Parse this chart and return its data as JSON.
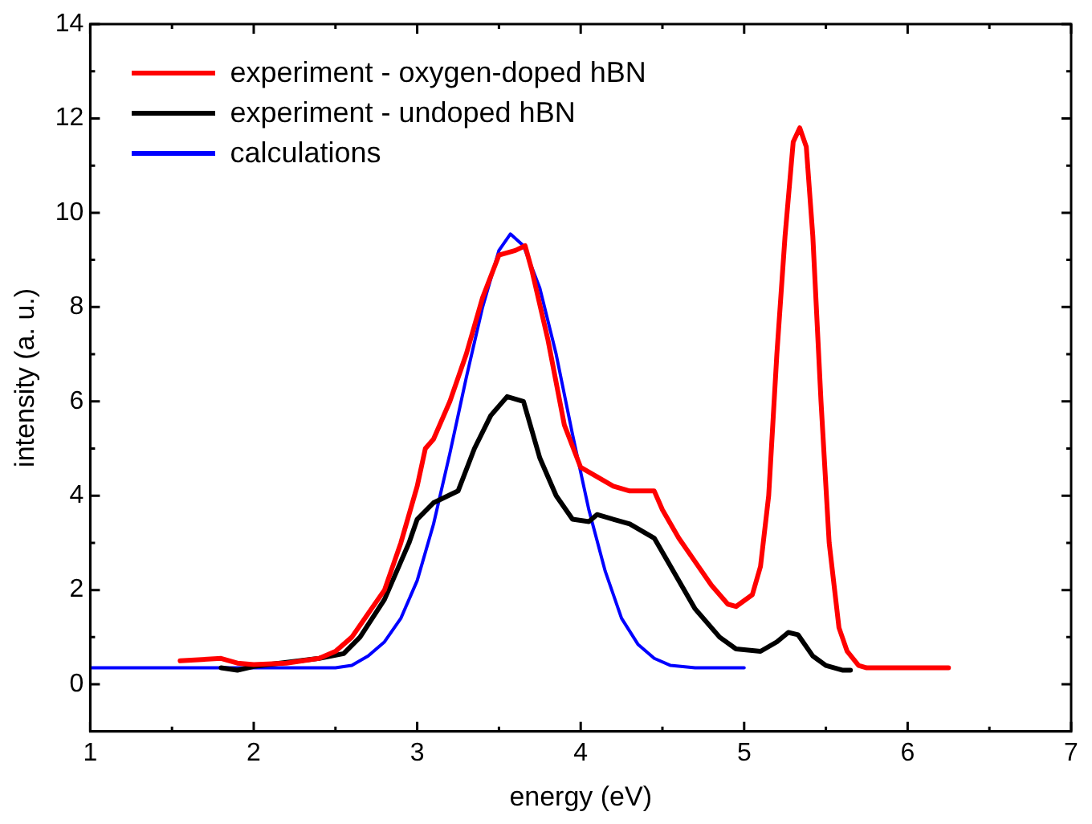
{
  "chart_data": {
    "type": "line",
    "xlabel": "energy (eV)",
    "ylabel": "intensity (a. u.)",
    "xlim": [
      1,
      7
    ],
    "xticks": [
      1,
      2,
      3,
      4,
      5,
      6,
      7
    ],
    "ylim": [
      -1,
      14
    ],
    "yticks": [
      0,
      2,
      4,
      6,
      8,
      10,
      12,
      14
    ],
    "grid": false,
    "legend": "top left",
    "marker": "none",
    "line_style": "solid",
    "series": [
      {
        "name": "experiment - oxygen-doped hBN",
        "color": "#ff0000",
        "x": [
          1.55,
          1.8,
          1.9,
          2.0,
          2.2,
          2.4,
          2.5,
          2.6,
          2.7,
          2.8,
          2.9,
          3.0,
          3.05,
          3.1,
          3.2,
          3.3,
          3.4,
          3.5,
          3.6,
          3.66,
          3.7,
          3.8,
          3.9,
          4.0,
          4.1,
          4.2,
          4.3,
          4.45,
          4.5,
          4.6,
          4.7,
          4.8,
          4.9,
          4.95,
          5.05,
          5.1,
          5.15,
          5.2,
          5.25,
          5.3,
          5.34,
          5.38,
          5.42,
          5.47,
          5.52,
          5.58,
          5.63,
          5.7,
          5.75,
          6.25
        ],
        "values": [
          0.5,
          0.55,
          0.45,
          0.42,
          0.45,
          0.55,
          0.7,
          1.0,
          1.5,
          2.0,
          3.0,
          4.2,
          5.0,
          5.2,
          6.0,
          7.0,
          8.2,
          9.1,
          9.2,
          9.3,
          8.8,
          7.3,
          5.5,
          4.6,
          4.4,
          4.2,
          4.1,
          4.1,
          3.7,
          3.1,
          2.6,
          2.1,
          1.7,
          1.65,
          1.9,
          2.5,
          4.0,
          7.0,
          9.5,
          11.5,
          11.8,
          11.4,
          9.5,
          6.0,
          3.0,
          1.2,
          0.7,
          0.4,
          0.35,
          0.35
        ]
      },
      {
        "name": "experiment - undoped hBN",
        "color": "#000000",
        "x": [
          1.8,
          1.9,
          2.0,
          2.4,
          2.55,
          2.65,
          2.8,
          2.9,
          2.95,
          3.0,
          3.1,
          3.25,
          3.35,
          3.45,
          3.5,
          3.55,
          3.65,
          3.75,
          3.85,
          3.95,
          4.05,
          4.1,
          4.3,
          4.45,
          4.55,
          4.7,
          4.85,
          4.95,
          5.1,
          5.2,
          5.27,
          5.33,
          5.42,
          5.5,
          5.6,
          5.65
        ],
        "values": [
          0.35,
          0.3,
          0.38,
          0.55,
          0.65,
          1.0,
          1.8,
          2.6,
          3.0,
          3.5,
          3.85,
          4.1,
          5.0,
          5.7,
          5.9,
          6.1,
          6.0,
          4.8,
          4.0,
          3.5,
          3.45,
          3.6,
          3.4,
          3.1,
          2.5,
          1.6,
          1.0,
          0.75,
          0.7,
          0.9,
          1.1,
          1.05,
          0.6,
          0.4,
          0.3,
          0.3
        ]
      },
      {
        "name": "calculations",
        "color": "#0000ff",
        "x": [
          1.0,
          2.5,
          2.6,
          2.7,
          2.8,
          2.9,
          3.0,
          3.1,
          3.2,
          3.3,
          3.4,
          3.5,
          3.57,
          3.65,
          3.75,
          3.85,
          3.95,
          4.05,
          4.15,
          4.25,
          4.35,
          4.45,
          4.55,
          4.7,
          5.0
        ],
        "values": [
          0.35,
          0.35,
          0.4,
          0.6,
          0.9,
          1.4,
          2.2,
          3.4,
          4.9,
          6.5,
          8.0,
          9.2,
          9.55,
          9.3,
          8.4,
          7.0,
          5.3,
          3.7,
          2.4,
          1.4,
          0.85,
          0.55,
          0.4,
          0.35,
          0.35
        ]
      }
    ]
  }
}
